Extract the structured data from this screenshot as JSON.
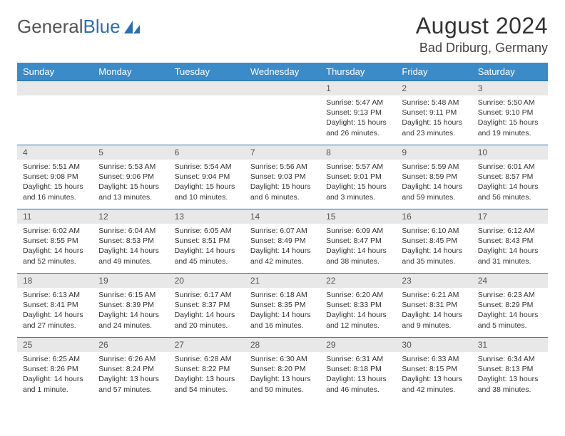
{
  "logo": {
    "text1": "General",
    "text2": "Blue"
  },
  "title": "August 2024",
  "location": "Bad Driburg, Germany",
  "colors": {
    "header_bg": "#3b8bc8",
    "header_text": "#ffffff",
    "rule": "#2a6fb5",
    "daynum_bg": "#e8e8e8",
    "logo_blue": "#2a6fb5"
  },
  "weekdays": [
    "Sunday",
    "Monday",
    "Tuesday",
    "Wednesday",
    "Thursday",
    "Friday",
    "Saturday"
  ],
  "weeks": [
    [
      null,
      null,
      null,
      null,
      {
        "n": "1",
        "sr": "Sunrise: 5:47 AM",
        "ss": "Sunset: 9:13 PM",
        "dl": "Daylight: 15 hours and 26 minutes."
      },
      {
        "n": "2",
        "sr": "Sunrise: 5:48 AM",
        "ss": "Sunset: 9:11 PM",
        "dl": "Daylight: 15 hours and 23 minutes."
      },
      {
        "n": "3",
        "sr": "Sunrise: 5:50 AM",
        "ss": "Sunset: 9:10 PM",
        "dl": "Daylight: 15 hours and 19 minutes."
      }
    ],
    [
      {
        "n": "4",
        "sr": "Sunrise: 5:51 AM",
        "ss": "Sunset: 9:08 PM",
        "dl": "Daylight: 15 hours and 16 minutes."
      },
      {
        "n": "5",
        "sr": "Sunrise: 5:53 AM",
        "ss": "Sunset: 9:06 PM",
        "dl": "Daylight: 15 hours and 13 minutes."
      },
      {
        "n": "6",
        "sr": "Sunrise: 5:54 AM",
        "ss": "Sunset: 9:04 PM",
        "dl": "Daylight: 15 hours and 10 minutes."
      },
      {
        "n": "7",
        "sr": "Sunrise: 5:56 AM",
        "ss": "Sunset: 9:03 PM",
        "dl": "Daylight: 15 hours and 6 minutes."
      },
      {
        "n": "8",
        "sr": "Sunrise: 5:57 AM",
        "ss": "Sunset: 9:01 PM",
        "dl": "Daylight: 15 hours and 3 minutes."
      },
      {
        "n": "9",
        "sr": "Sunrise: 5:59 AM",
        "ss": "Sunset: 8:59 PM",
        "dl": "Daylight: 14 hours and 59 minutes."
      },
      {
        "n": "10",
        "sr": "Sunrise: 6:01 AM",
        "ss": "Sunset: 8:57 PM",
        "dl": "Daylight: 14 hours and 56 minutes."
      }
    ],
    [
      {
        "n": "11",
        "sr": "Sunrise: 6:02 AM",
        "ss": "Sunset: 8:55 PM",
        "dl": "Daylight: 14 hours and 52 minutes."
      },
      {
        "n": "12",
        "sr": "Sunrise: 6:04 AM",
        "ss": "Sunset: 8:53 PM",
        "dl": "Daylight: 14 hours and 49 minutes."
      },
      {
        "n": "13",
        "sr": "Sunrise: 6:05 AM",
        "ss": "Sunset: 8:51 PM",
        "dl": "Daylight: 14 hours and 45 minutes."
      },
      {
        "n": "14",
        "sr": "Sunrise: 6:07 AM",
        "ss": "Sunset: 8:49 PM",
        "dl": "Daylight: 14 hours and 42 minutes."
      },
      {
        "n": "15",
        "sr": "Sunrise: 6:09 AM",
        "ss": "Sunset: 8:47 PM",
        "dl": "Daylight: 14 hours and 38 minutes."
      },
      {
        "n": "16",
        "sr": "Sunrise: 6:10 AM",
        "ss": "Sunset: 8:45 PM",
        "dl": "Daylight: 14 hours and 35 minutes."
      },
      {
        "n": "17",
        "sr": "Sunrise: 6:12 AM",
        "ss": "Sunset: 8:43 PM",
        "dl": "Daylight: 14 hours and 31 minutes."
      }
    ],
    [
      {
        "n": "18",
        "sr": "Sunrise: 6:13 AM",
        "ss": "Sunset: 8:41 PM",
        "dl": "Daylight: 14 hours and 27 minutes."
      },
      {
        "n": "19",
        "sr": "Sunrise: 6:15 AM",
        "ss": "Sunset: 8:39 PM",
        "dl": "Daylight: 14 hours and 24 minutes."
      },
      {
        "n": "20",
        "sr": "Sunrise: 6:17 AM",
        "ss": "Sunset: 8:37 PM",
        "dl": "Daylight: 14 hours and 20 minutes."
      },
      {
        "n": "21",
        "sr": "Sunrise: 6:18 AM",
        "ss": "Sunset: 8:35 PM",
        "dl": "Daylight: 14 hours and 16 minutes."
      },
      {
        "n": "22",
        "sr": "Sunrise: 6:20 AM",
        "ss": "Sunset: 8:33 PM",
        "dl": "Daylight: 14 hours and 12 minutes."
      },
      {
        "n": "23",
        "sr": "Sunrise: 6:21 AM",
        "ss": "Sunset: 8:31 PM",
        "dl": "Daylight: 14 hours and 9 minutes."
      },
      {
        "n": "24",
        "sr": "Sunrise: 6:23 AM",
        "ss": "Sunset: 8:29 PM",
        "dl": "Daylight: 14 hours and 5 minutes."
      }
    ],
    [
      {
        "n": "25",
        "sr": "Sunrise: 6:25 AM",
        "ss": "Sunset: 8:26 PM",
        "dl": "Daylight: 14 hours and 1 minute."
      },
      {
        "n": "26",
        "sr": "Sunrise: 6:26 AM",
        "ss": "Sunset: 8:24 PM",
        "dl": "Daylight: 13 hours and 57 minutes."
      },
      {
        "n": "27",
        "sr": "Sunrise: 6:28 AM",
        "ss": "Sunset: 8:22 PM",
        "dl": "Daylight: 13 hours and 54 minutes."
      },
      {
        "n": "28",
        "sr": "Sunrise: 6:30 AM",
        "ss": "Sunset: 8:20 PM",
        "dl": "Daylight: 13 hours and 50 minutes."
      },
      {
        "n": "29",
        "sr": "Sunrise: 6:31 AM",
        "ss": "Sunset: 8:18 PM",
        "dl": "Daylight: 13 hours and 46 minutes."
      },
      {
        "n": "30",
        "sr": "Sunrise: 6:33 AM",
        "ss": "Sunset: 8:15 PM",
        "dl": "Daylight: 13 hours and 42 minutes."
      },
      {
        "n": "31",
        "sr": "Sunrise: 6:34 AM",
        "ss": "Sunset: 8:13 PM",
        "dl": "Daylight: 13 hours and 38 minutes."
      }
    ]
  ]
}
